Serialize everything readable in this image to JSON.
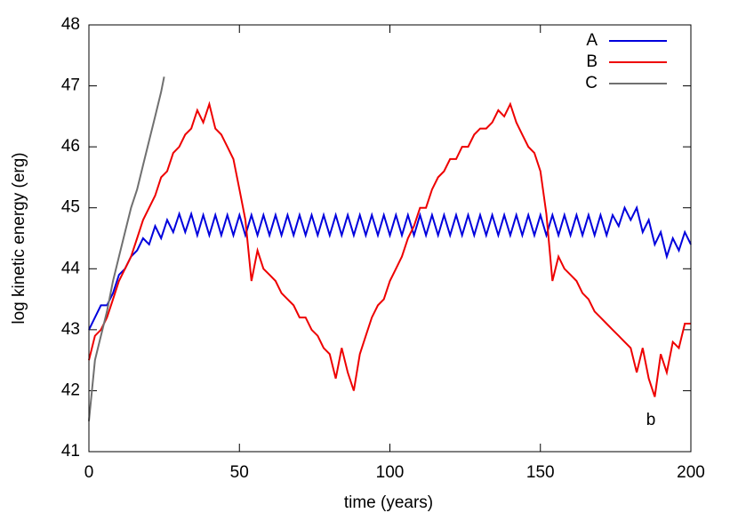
{
  "chart_data": {
    "type": "line",
    "xlabel": "time (years)",
    "ylabel": "log kinetic energy (erg)",
    "annotation": "b",
    "xlim": [
      0,
      200
    ],
    "ylim": [
      41,
      48
    ],
    "xticks": [
      0,
      50,
      100,
      150,
      200
    ],
    "yticks": [
      41,
      42,
      43,
      44,
      45,
      46,
      47,
      48
    ],
    "legend": "upper right",
    "x": [
      0,
      2,
      4,
      6,
      8,
      10,
      12,
      14,
      16,
      18,
      20,
      22,
      24,
      26,
      28,
      30,
      32,
      34,
      36,
      38,
      40,
      42,
      44,
      46,
      48,
      50,
      52,
      54,
      56,
      58,
      60,
      62,
      64,
      66,
      68,
      70,
      72,
      74,
      76,
      78,
      80,
      82,
      84,
      86,
      88,
      90,
      92,
      94,
      96,
      98,
      100,
      102,
      104,
      106,
      108,
      110,
      112,
      114,
      116,
      118,
      120,
      122,
      124,
      126,
      128,
      130,
      132,
      134,
      136,
      138,
      140,
      142,
      144,
      146,
      148,
      150,
      152,
      154,
      156,
      158,
      160,
      162,
      164,
      166,
      168,
      170,
      172,
      174,
      176,
      178,
      180,
      182,
      184,
      186,
      188,
      190,
      192,
      194,
      196,
      198,
      200
    ],
    "series": [
      {
        "name": "A",
        "color": "#0000dd",
        "values": [
          43.0,
          43.2,
          43.4,
          43.4,
          43.6,
          43.9,
          44.0,
          44.2,
          44.3,
          44.5,
          44.4,
          44.7,
          44.5,
          44.8,
          44.6,
          44.9,
          44.6,
          44.9,
          44.55,
          44.88,
          44.55,
          44.88,
          44.55,
          44.88,
          44.55,
          44.88,
          44.55,
          44.88,
          44.55,
          44.88,
          44.55,
          44.88,
          44.55,
          44.88,
          44.55,
          44.88,
          44.55,
          44.88,
          44.55,
          44.88,
          44.55,
          44.88,
          44.55,
          44.88,
          44.55,
          44.88,
          44.55,
          44.88,
          44.55,
          44.88,
          44.55,
          44.88,
          44.55,
          44.88,
          44.55,
          44.88,
          44.55,
          44.88,
          44.55,
          44.88,
          44.55,
          44.88,
          44.55,
          44.88,
          44.55,
          44.88,
          44.55,
          44.88,
          44.55,
          44.88,
          44.55,
          44.88,
          44.55,
          44.88,
          44.55,
          44.88,
          44.55,
          44.88,
          44.55,
          44.88,
          44.55,
          44.88,
          44.55,
          44.88,
          44.55,
          44.88,
          44.55,
          44.88,
          44.7,
          45.0,
          44.8,
          45.0,
          44.6,
          44.8,
          44.4,
          44.6,
          44.2,
          44.5,
          44.3,
          44.6,
          44.4
        ]
      },
      {
        "name": "B",
        "color": "#ee0000",
        "values": [
          42.5,
          42.9,
          43.0,
          43.2,
          43.5,
          43.8,
          44.0,
          44.2,
          44.5,
          44.8,
          45.0,
          45.2,
          45.5,
          45.6,
          45.9,
          46.0,
          46.2,
          46.3,
          46.6,
          46.4,
          46.7,
          46.3,
          46.2,
          46.0,
          45.8,
          45.3,
          44.8,
          43.8,
          44.3,
          44.0,
          43.9,
          43.8,
          43.6,
          43.5,
          43.4,
          43.2,
          43.2,
          43.0,
          42.9,
          42.7,
          42.6,
          42.2,
          42.7,
          42.3,
          42.0,
          42.6,
          42.9,
          43.2,
          43.4,
          43.5,
          43.8,
          44.0,
          44.2,
          44.5,
          44.7,
          45.0,
          45.0,
          45.3,
          45.5,
          45.6,
          45.8,
          45.8,
          46.0,
          46.0,
          46.2,
          46.3,
          46.3,
          46.4,
          46.6,
          46.5,
          46.7,
          46.4,
          46.2,
          46.0,
          45.9,
          45.6,
          44.9,
          43.8,
          44.2,
          44.0,
          43.9,
          43.8,
          43.6,
          43.5,
          43.3,
          43.2,
          43.1,
          43.0,
          42.9,
          42.8,
          42.7,
          42.3,
          42.7,
          42.2,
          41.9,
          42.6,
          42.3,
          42.8,
          42.7,
          43.1,
          43.1
        ]
      },
      {
        "name": "C",
        "color": "#707070",
        "x": [
          0,
          2,
          4,
          6,
          8,
          10,
          12,
          14,
          16,
          18,
          20,
          22,
          24,
          25
        ],
        "values": [
          41.5,
          42.5,
          42.9,
          43.3,
          43.8,
          44.2,
          44.6,
          45.0,
          45.3,
          45.7,
          46.1,
          46.5,
          46.9,
          47.15
        ]
      }
    ]
  }
}
